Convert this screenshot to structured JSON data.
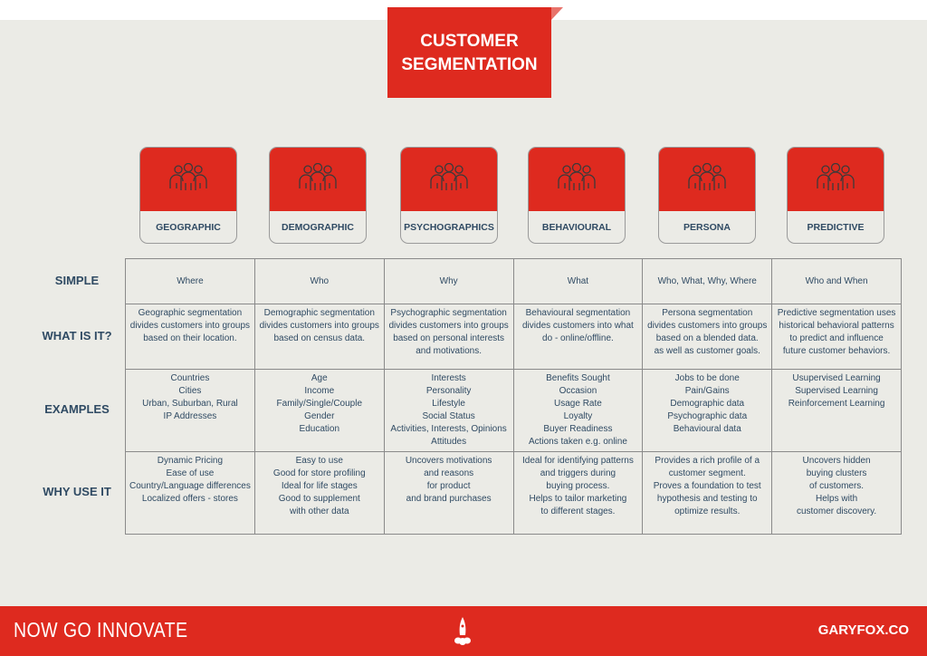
{
  "title": {
    "line1": "CUSTOMER",
    "line2": "SEGMENTATION"
  },
  "brand_color": "#de2a1f",
  "segments": [
    {
      "label": "GEOGRAPHIC",
      "icon": "people-group-icon"
    },
    {
      "label": "DEMOGRAPHIC",
      "icon": "people-group-icon"
    },
    {
      "label": "PSYCHOGRAPHICS",
      "icon": "people-group-icon"
    },
    {
      "label": "BEHAVIOURAL",
      "icon": "people-group-icon"
    },
    {
      "label": "PERSONA",
      "icon": "people-group-icon"
    },
    {
      "label": "PREDICTIVE",
      "icon": "people-group-icon"
    }
  ],
  "rows": [
    {
      "label": "SIMPLE",
      "cells": [
        [
          "Where"
        ],
        [
          "Who"
        ],
        [
          "Why"
        ],
        [
          "What"
        ],
        [
          "Who, What, Why, Where"
        ],
        [
          "Who and When"
        ]
      ]
    },
    {
      "label": "WHAT IS IT?",
      "cells": [
        [
          "Geographic segmentation",
          "divides customers into groups",
          "based on their location."
        ],
        [
          "Demographic segmentation",
          "divides customers into groups",
          "based on census data."
        ],
        [
          "Psychographic segmentation",
          "divides customers into groups",
          "based on personal interests",
          "and motivations."
        ],
        [
          "Behavioural segmentation",
          "divides customers into what",
          "do - online/offline."
        ],
        [
          "Persona segmentation",
          "divides customers into groups",
          "based on a blended data.",
          "as well as customer goals."
        ],
        [
          "Predictive segmentation uses",
          "historical behavioral patterns",
          "to predict and influence",
          "future customer behaviors."
        ]
      ]
    },
    {
      "label": "EXAMPLES",
      "cells": [
        [
          "Countries",
          "Cities",
          "Urban, Suburban, Rural",
          "IP Addresses"
        ],
        [
          "Age",
          "Income",
          "Family/Single/Couple",
          "Gender",
          "Education"
        ],
        [
          "Interests",
          "Personality",
          "Lifestyle",
          "Social Status",
          "Activities, Interests, Opinions",
          "Attitudes"
        ],
        [
          "Benefits Sought",
          "Occasion",
          "Usage Rate",
          "Loyalty",
          "Buyer Readiness",
          "Actions taken e.g. online"
        ],
        [
          "Jobs to be done",
          "Pain/Gains",
          "Demographic data",
          "Psychographic data",
          "Behavioural data"
        ],
        [
          "Usupervised Learning",
          "Supervised Learning",
          "Reinforcement Learning"
        ]
      ]
    },
    {
      "label": "WHY USE IT",
      "cells": [
        [
          "Dynamic Pricing",
          "Ease of use",
          "Country/Language differences",
          "Localized offers - stores"
        ],
        [
          "Easy to use",
          "Good for store profiling",
          "Ideal for life stages",
          "Good to supplement",
          "with other data"
        ],
        [
          "Uncovers motivations",
          "and reasons",
          "for product",
          "and brand purchases"
        ],
        [
          "Ideal for identifying patterns",
          "and triggers during",
          "buying process.",
          "Helps to tailor marketing",
          "to different stages."
        ],
        [
          "Provides a rich profile of a",
          "customer segment.",
          "Proves a foundation to test",
          "hypothesis and testing to",
          "optimize results."
        ],
        [
          "Uncovers hidden",
          "buying clusters",
          "of customers.",
          "Helps with",
          "customer discovery."
        ]
      ]
    }
  ],
  "footer": {
    "left": "NOW GO INNOVATE",
    "right": "GARYFOX.CO",
    "icon": "rocket-icon"
  }
}
